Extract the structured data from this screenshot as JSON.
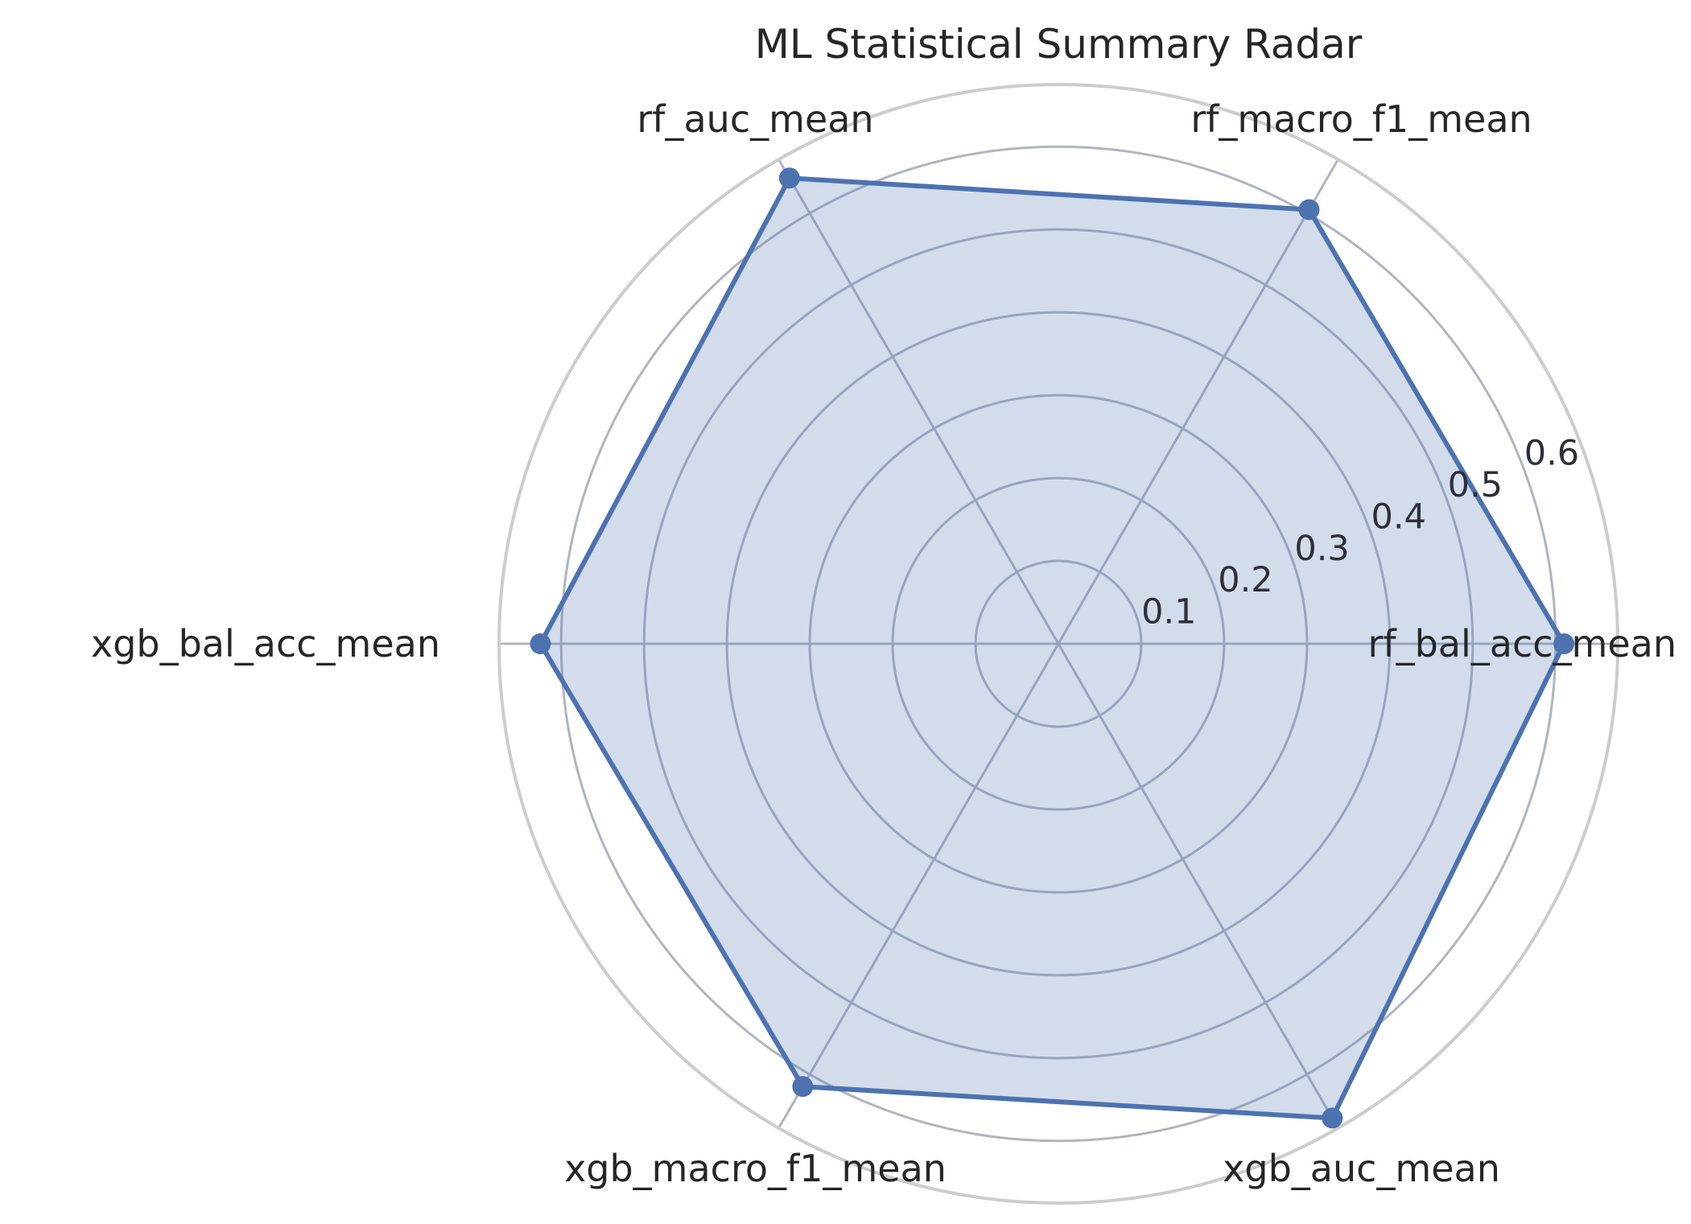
{
  "chart_data": {
    "type": "radar",
    "title": "ML Statistical Summary Radar",
    "categories": [
      "rf_bal_acc_mean",
      "rf_macro_f1_mean",
      "rf_auc_mean",
      "xgb_bal_acc_mean",
      "xgb_macro_f1_mean",
      "xgb_auc_mean"
    ],
    "values": [
      0.61,
      0.605,
      0.649,
      0.625,
      0.617,
      0.661
    ],
    "rlim": [
      0,
      0.675
    ],
    "rticks": [
      0.1,
      0.2,
      0.3,
      0.4,
      0.5,
      0.6
    ],
    "rtick_labels": [
      "0.1",
      "0.2",
      "0.3",
      "0.4",
      "0.5",
      "0.6"
    ],
    "grid": true,
    "colors": {
      "line": "#4c72b0",
      "fill": "#4c72b0",
      "grid": "#b0b4c0",
      "outer_ring": "#cccccc"
    }
  }
}
